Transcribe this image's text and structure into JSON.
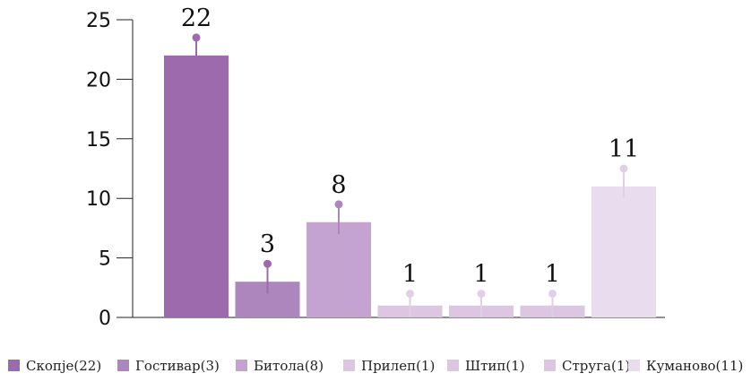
{
  "chart_data": {
    "type": "bar",
    "categories": [
      "Скопје(22)",
      "Гостивар(3)",
      "Битола(8)",
      "Прилеп(1)",
      "Штип(1)",
      "Струга(1)",
      "Куманово(11)"
    ],
    "values": [
      22,
      3,
      8,
      1,
      1,
      1,
      11
    ],
    "error_upper": [
      23.5,
      4.5,
      9.5,
      2,
      2,
      2,
      12.5
    ],
    "error_lower": [
      21,
      2,
      7,
      0,
      0,
      0,
      10
    ],
    "colors": [
      "#9c6aad",
      "#ad86bd",
      "#c4a3d0",
      "#dcc6e2",
      "#dcc6e2",
      "#dcc6e2",
      "#e8dcee"
    ],
    "error_colors": [
      "#9c6aad",
      "#9c6aad",
      "#ad86bd",
      "#e2cfe7",
      "#e2cfe7",
      "#e2cfe7",
      "#e0d0e6"
    ],
    "ylim": [
      0,
      25
    ],
    "yticks": [
      "0",
      "5",
      "10",
      "15",
      "20",
      "25"
    ],
    "legend_position": "bottom",
    "grid": false,
    "title": "",
    "xlabel": "",
    "ylabel": ""
  }
}
